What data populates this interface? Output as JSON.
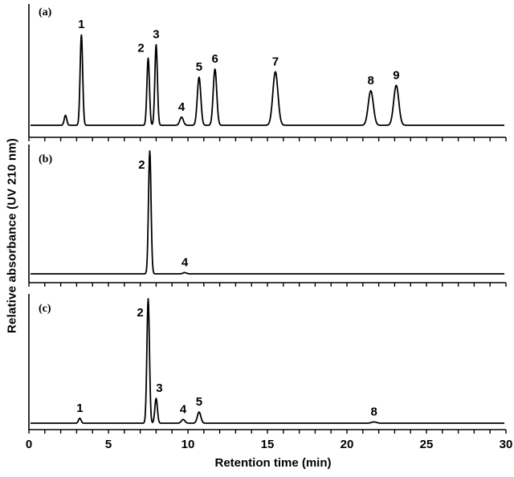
{
  "chart_data": {
    "type": "line",
    "title": "",
    "xlabel": "Retention time (min)",
    "ylabel": "Relative absorbance (UV 210 nm)",
    "xlim": [
      0,
      30
    ],
    "xticks": [
      0,
      5,
      10,
      15,
      20,
      25,
      30
    ],
    "minor_tick_step": 1,
    "grid": false,
    "panels": [
      {
        "label": "(a)",
        "peaks": [
          {
            "id": "",
            "rt": 2.3,
            "height": 0.11
          },
          {
            "id": "1",
            "rt": 3.3,
            "height": 1.0
          },
          {
            "id": "2",
            "rt": 7.5,
            "height": 0.74
          },
          {
            "id": "3",
            "rt": 8.0,
            "height": 0.89
          },
          {
            "id": "4",
            "rt": 9.6,
            "height": 0.09
          },
          {
            "id": "5",
            "rt": 10.7,
            "height": 0.53
          },
          {
            "id": "6",
            "rt": 11.7,
            "height": 0.62
          },
          {
            "id": "7",
            "rt": 15.5,
            "height": 0.59
          },
          {
            "id": "8",
            "rt": 21.5,
            "height": 0.38
          },
          {
            "id": "9",
            "rt": 23.1,
            "height": 0.44
          }
        ]
      },
      {
        "label": "(b)",
        "peaks": [
          {
            "id": "2",
            "rt": 7.6,
            "height": 1.0
          },
          {
            "id": "4",
            "rt": 9.8,
            "height": 0.01
          }
        ]
      },
      {
        "label": "(c)",
        "peaks": [
          {
            "id": "1",
            "rt": 3.2,
            "height": 0.04
          },
          {
            "id": "2",
            "rt": 7.5,
            "height": 1.0
          },
          {
            "id": "3",
            "rt": 8.0,
            "height": 0.2
          },
          {
            "id": "4",
            "rt": 9.7,
            "height": 0.03
          },
          {
            "id": "5",
            "rt": 10.7,
            "height": 0.09
          },
          {
            "id": "8",
            "rt": 21.7,
            "height": 0.01
          }
        ]
      }
    ]
  }
}
